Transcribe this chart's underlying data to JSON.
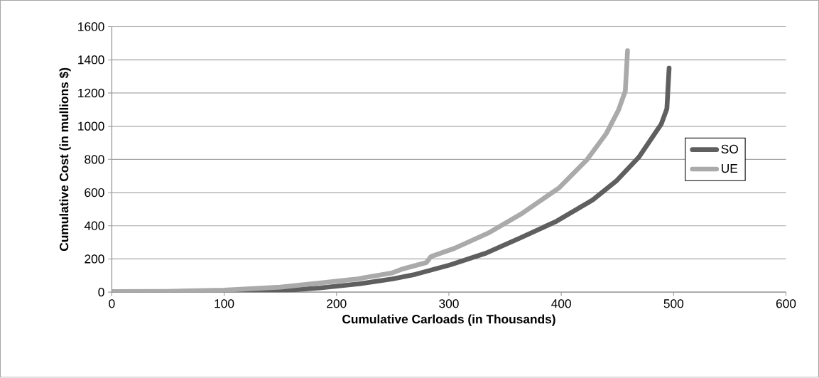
{
  "chart_data": {
    "type": "line",
    "xlabel": "Cumulative Carloads (in Thousands)",
    "ylabel": "Cumulative Cost (in mullions $)",
    "xlim": [
      0,
      600
    ],
    "xticks": [
      0,
      100,
      200,
      300,
      400,
      500,
      600
    ],
    "ylim": [
      0,
      1600
    ],
    "yticks": [
      0,
      200,
      400,
      600,
      800,
      1000,
      1200,
      1400,
      1600
    ],
    "grid": "y",
    "legend": "right",
    "marker": "none",
    "line_style": "solid",
    "series": [
      {
        "name": "SO",
        "color": "#5f5f5f",
        "x": [
          0,
          110,
          150,
          185,
          220,
          250,
          270,
          301,
          333,
          364,
          396,
          428,
          449,
          469,
          489,
          494,
          496
        ],
        "values": [
          0,
          0,
          8,
          25,
          50,
          80,
          107,
          164,
          235,
          328,
          428,
          556,
          670,
          813,
          1013,
          1105,
          1350
        ]
      },
      {
        "name": "UE",
        "color": "#aaaaaa",
        "x": [
          0,
          50,
          100,
          150,
          185,
          217,
          249,
          259,
          280,
          284,
          305,
          335,
          364,
          398,
          423,
          440,
          451,
          457,
          459
        ],
        "values": [
          3,
          5,
          12,
          30,
          55,
          78,
          115,
          140,
          178,
          214,
          264,
          356,
          470,
          628,
          799,
          955,
          1098,
          1212,
          1455
        ]
      }
    ]
  }
}
